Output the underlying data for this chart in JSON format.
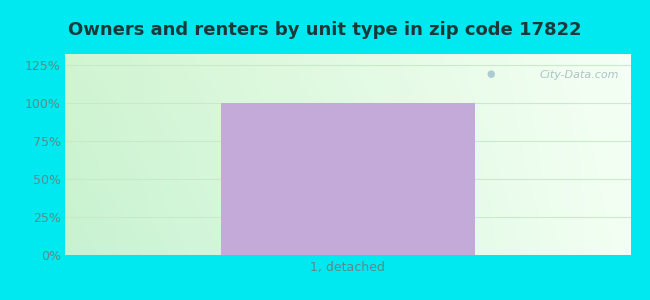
{
  "title": "Owners and renters by unit type in zip code 17822",
  "categories": [
    "1, detached"
  ],
  "values": [
    100
  ],
  "bar_color": "#c4aad8",
  "background_color": "#00e8f0",
  "yticks": [
    0,
    25,
    50,
    75,
    100,
    125
  ],
  "ylim": [
    0,
    132
  ],
  "title_fontsize": 13,
  "tick_fontsize": 9,
  "label_color": "#5a8a8a",
  "watermark_text": "City-Data.com",
  "grid_color": "#d0e8d0",
  "plot_grad_left": "#d0f0d0",
  "plot_grad_right": "#eafaea"
}
